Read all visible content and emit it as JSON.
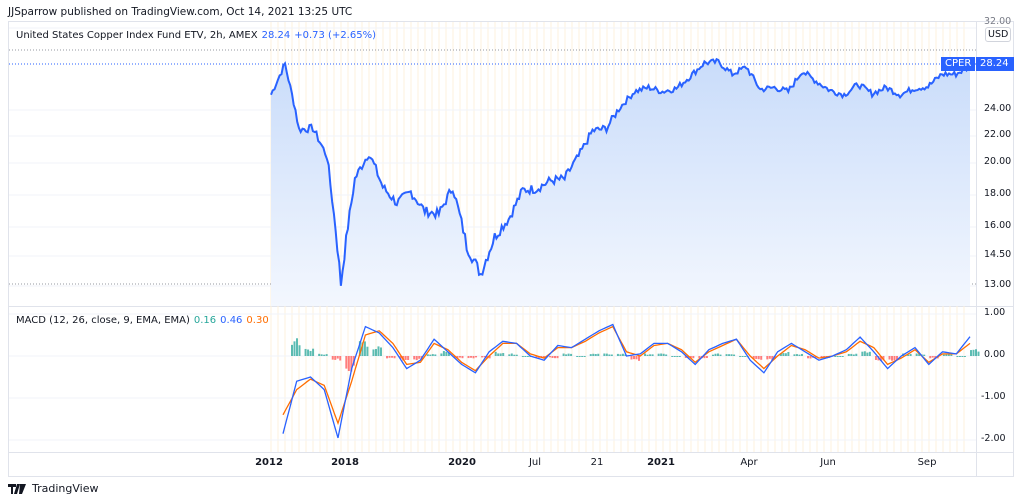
{
  "header": {
    "publisher_line": "JJSparrow published on TradingView.com, Oct 14, 2021 13:25 UTC"
  },
  "symbol_legend": {
    "title": "United States Copper Index Fund ETV, 2h, AMEX",
    "last": "28.24",
    "change": "+0.73 (+2.65%)"
  },
  "price_scale": {
    "currency": "USD",
    "ticks": [
      "32.00",
      "24.00",
      "22.00",
      "20.00",
      "18.00",
      "16.00",
      "14.50",
      "13.00"
    ],
    "last_price_label": "28.24",
    "symbol_tag": "CPER"
  },
  "macd_legend": {
    "title": "MACD (12, 26, close, 9, EMA, EMA)",
    "histogram": "0.16",
    "macd": "0.46",
    "signal": "0.30"
  },
  "macd_scale": {
    "ticks": [
      "1.00",
      "0.00",
      "-1.00",
      "-2.00"
    ]
  },
  "time_axis": {
    "labels": [
      {
        "text": "2012",
        "x": 269,
        "bold": true
      },
      {
        "text": "2018",
        "x": 345,
        "bold": true
      },
      {
        "text": "2020",
        "x": 462,
        "bold": true
      },
      {
        "text": "Jul",
        "x": 535,
        "bold": false
      },
      {
        "text": "21",
        "x": 597,
        "bold": false
      },
      {
        "text": "2021",
        "x": 661,
        "bold": true
      },
      {
        "text": "Apr",
        "x": 749,
        "bold": false
      },
      {
        "text": "Jun",
        "x": 828,
        "bold": false
      },
      {
        "text": "Sep",
        "x": 927,
        "bold": false
      }
    ]
  },
  "footer": {
    "brand": "TradingView"
  },
  "colors": {
    "price_line": "#2962ff",
    "area_fill": "#d6e4fb",
    "macd_line": "#2962ff",
    "signal_line": "#ff6d00",
    "hist_pos": "#26a69a",
    "hist_neg": "#ff5252"
  },
  "chart_data": [
    {
      "type": "area",
      "title": "United States Copper Index Fund ETV (CPER), 2h, AMEX",
      "xlabel": "",
      "ylabel": "USD",
      "ylim": [
        13.0,
        32.0
      ],
      "x_ticks": [
        "2012",
        "2018",
        "2020",
        "Jul",
        "21",
        "2021",
        "Apr",
        "Jun",
        "Sep"
      ],
      "y_ticks": [
        13.0,
        14.5,
        16.0,
        18.0,
        20.0,
        22.0,
        24.0,
        32.0
      ],
      "last_value": 28.24,
      "change": 0.73,
      "change_pct": 2.65,
      "x": [
        0,
        2,
        4,
        6,
        8,
        10,
        12,
        14,
        16,
        18,
        20,
        22,
        24,
        26,
        28,
        30,
        32,
        34,
        36,
        38,
        40,
        42,
        44,
        46,
        48,
        50,
        52,
        54,
        56,
        58,
        60,
        62,
        64,
        66,
        68,
        70,
        72,
        74,
        76,
        78,
        80,
        82,
        84,
        86,
        88,
        90,
        92,
        94,
        96,
        98,
        100
      ],
      "values": [
        25.5,
        28.5,
        22.5,
        22.6,
        20.5,
        13.1,
        19.0,
        20.7,
        18.5,
        17.5,
        18.2,
        17.0,
        16.8,
        18.5,
        15.0,
        13.6,
        15.5,
        16.5,
        18.3,
        18.4,
        18.9,
        19.0,
        20.5,
        22.4,
        22.6,
        24.3,
        25.8,
        26.2,
        25.8,
        26.1,
        27.3,
        28.6,
        28.7,
        27.5,
        28.2,
        26.0,
        26.2,
        25.8,
        27.8,
        26.8,
        25.9,
        25.5,
        26.5,
        25.6,
        26.2,
        25.5,
        26.1,
        26.3,
        27.5,
        27.5,
        28.24
      ]
    },
    {
      "type": "line",
      "title": "MACD (12, 26, close, 9, EMA, EMA)",
      "ylim": [
        -2.2,
        1.1
      ],
      "y_ticks": [
        1.0,
        0.0,
        -1.0,
        -2.0
      ],
      "series": [
        {
          "name": "MACD",
          "last": 0.46,
          "values": [
            -1.85,
            -0.6,
            -0.5,
            -0.8,
            -1.95,
            -0.3,
            0.7,
            0.55,
            0.2,
            -0.3,
            -0.1,
            0.4,
            0.1,
            -0.2,
            -0.4,
            0.1,
            0.35,
            0.3,
            0.0,
            -0.1,
            0.25,
            0.2,
            0.4,
            0.6,
            0.75,
            0.0,
            0.05,
            0.3,
            0.3,
            0.1,
            -0.2,
            0.15,
            0.3,
            0.4,
            -0.1,
            -0.4,
            0.1,
            0.3,
            0.1,
            -0.1,
            0.0,
            0.15,
            0.45,
            0.1,
            -0.3,
            0.0,
            0.2,
            -0.2,
            0.1,
            0.05,
            0.46
          ]
        },
        {
          "name": "Signal",
          "last": 0.3,
          "values": [
            -1.4,
            -0.8,
            -0.55,
            -0.7,
            -1.6,
            -0.6,
            0.5,
            0.6,
            0.3,
            -0.2,
            -0.15,
            0.3,
            0.15,
            -0.15,
            -0.35,
            0.0,
            0.3,
            0.3,
            0.05,
            -0.05,
            0.2,
            0.2,
            0.35,
            0.55,
            0.7,
            0.1,
            0.0,
            0.25,
            0.3,
            0.15,
            -0.15,
            0.1,
            0.25,
            0.4,
            0.0,
            -0.3,
            0.0,
            0.25,
            0.15,
            -0.05,
            0.0,
            0.1,
            0.35,
            0.2,
            -0.2,
            -0.05,
            0.15,
            -0.15,
            0.05,
            0.05,
            0.3
          ]
        },
        {
          "name": "Histogram",
          "last": 0.16,
          "values": [
            0.4,
            0.2,
            0.05,
            -0.1,
            -0.35,
            0.3,
            0.2,
            -0.05,
            -0.1,
            -0.1,
            0.05,
            0.1,
            -0.05,
            -0.05,
            -0.05,
            0.1,
            0.05,
            0.0,
            -0.05,
            -0.05,
            0.05,
            0.0,
            0.05,
            0.05,
            0.05,
            -0.1,
            0.05,
            0.05,
            0.0,
            -0.05,
            -0.05,
            0.05,
            0.05,
            0.0,
            -0.1,
            -0.1,
            0.1,
            0.05,
            -0.05,
            -0.05,
            0.0,
            0.05,
            0.1,
            -0.1,
            -0.1,
            0.05,
            0.05,
            -0.05,
            0.05,
            0.0,
            0.16
          ]
        }
      ]
    }
  ]
}
